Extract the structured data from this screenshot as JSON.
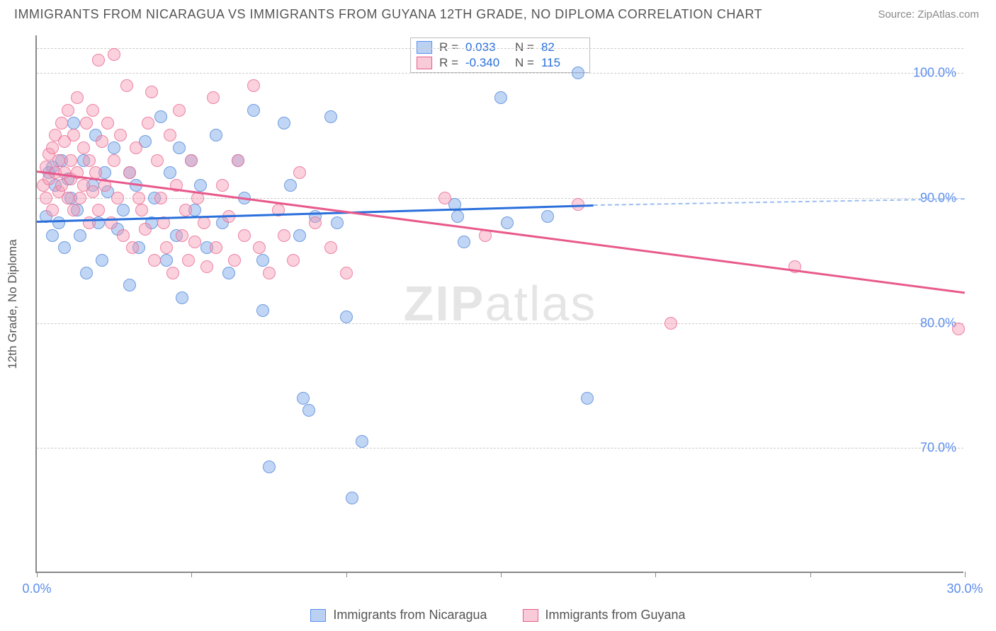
{
  "title": "IMMIGRANTS FROM NICARAGUA VS IMMIGRANTS FROM GUYANA 12TH GRADE, NO DIPLOMA CORRELATION CHART",
  "source": "Source: ZipAtlas.com",
  "ylabel": "12th Grade, No Diploma",
  "watermark_a": "ZIP",
  "watermark_b": "atlas",
  "chart": {
    "type": "scatter-with-trend",
    "background_color": "#ffffff",
    "grid_color": "#cccccc",
    "axis_color": "#888888",
    "xlim": [
      0,
      30
    ],
    "ylim": [
      60,
      103
    ],
    "x_ticks": [
      0,
      5,
      10,
      15,
      20,
      25,
      30
    ],
    "x_tick_labels": {
      "0": "0.0%",
      "30": "30.0%"
    },
    "y_ticks": [
      70,
      80,
      90,
      100
    ],
    "y_tick_labels": [
      "70.0%",
      "80.0%",
      "90.0%",
      "100.0%"
    ],
    "label_fontsize": 18,
    "label_color": "#5b8def",
    "marker_size": 18,
    "marker_opacity": 0.45,
    "series": [
      {
        "name": "Immigrants from Nicaragua",
        "color": "#75a3e6",
        "border_color": "#5a8cdc",
        "R": "0.033",
        "N": "82",
        "trend": {
          "x0": 0,
          "y0": 88.2,
          "x1": 18,
          "y1": 89.5,
          "color": "#2a6fdb",
          "width": 3,
          "extrap_x1": 30,
          "extrap_y1": 90.0
        },
        "pts": [
          [
            0.3,
            88.5
          ],
          [
            0.4,
            92
          ],
          [
            0.5,
            87
          ],
          [
            0.5,
            92.5
          ],
          [
            0.6,
            91
          ],
          [
            0.7,
            88
          ],
          [
            0.8,
            93
          ],
          [
            0.9,
            86
          ],
          [
            1.0,
            91.5
          ],
          [
            1.1,
            90
          ],
          [
            1.2,
            96
          ],
          [
            1.3,
            89
          ],
          [
            1.4,
            87
          ],
          [
            1.5,
            93
          ],
          [
            1.6,
            84
          ],
          [
            1.8,
            91
          ],
          [
            1.9,
            95
          ],
          [
            2.0,
            88
          ],
          [
            2.1,
            85
          ],
          [
            2.2,
            92
          ],
          [
            2.3,
            90.5
          ],
          [
            2.5,
            94
          ],
          [
            2.6,
            87.5
          ],
          [
            2.8,
            89
          ],
          [
            3.0,
            92
          ],
          [
            3.0,
            83
          ],
          [
            3.2,
            91
          ],
          [
            3.3,
            86
          ],
          [
            3.5,
            94.5
          ],
          [
            3.7,
            88
          ],
          [
            3.8,
            90
          ],
          [
            4.0,
            96.5
          ],
          [
            4.2,
            85
          ],
          [
            4.3,
            92
          ],
          [
            4.5,
            87
          ],
          [
            4.6,
            94
          ],
          [
            4.7,
            82
          ],
          [
            5.0,
            93
          ],
          [
            5.1,
            89
          ],
          [
            5.3,
            91
          ],
          [
            5.5,
            86
          ],
          [
            5.8,
            95
          ],
          [
            6.0,
            88
          ],
          [
            6.2,
            84
          ],
          [
            6.5,
            93
          ],
          [
            6.7,
            90
          ],
          [
            7.0,
            97
          ],
          [
            7.3,
            85
          ],
          [
            7.3,
            81
          ],
          [
            7.5,
            68.5
          ],
          [
            8.0,
            96
          ],
          [
            8.2,
            91
          ],
          [
            8.5,
            87
          ],
          [
            8.6,
            74
          ],
          [
            8.8,
            73
          ],
          [
            9.0,
            88.5
          ],
          [
            9.5,
            96.5
          ],
          [
            9.7,
            88
          ],
          [
            10.0,
            80.5
          ],
          [
            10.2,
            66
          ],
          [
            10.5,
            70.5
          ],
          [
            13.5,
            89.5
          ],
          [
            13.6,
            88.5
          ],
          [
            13.8,
            86.5
          ],
          [
            15.0,
            98
          ],
          [
            15.2,
            88
          ],
          [
            16.5,
            88.5
          ],
          [
            17.5,
            100
          ],
          [
            17.8,
            74
          ]
        ]
      },
      {
        "name": "Immigrants from Guyana",
        "color": "#f498b1",
        "border_color": "#eb6e96",
        "R": "-0.340",
        "N": "115",
        "trend": {
          "x0": 0,
          "y0": 92.2,
          "x1": 30,
          "y1": 82.5,
          "color": "#e85a8c",
          "width": 3
        },
        "pts": [
          [
            0.2,
            91
          ],
          [
            0.3,
            92.5
          ],
          [
            0.3,
            90
          ],
          [
            0.4,
            93.5
          ],
          [
            0.4,
            91.5
          ],
          [
            0.5,
            94
          ],
          [
            0.5,
            89
          ],
          [
            0.6,
            92
          ],
          [
            0.6,
            95
          ],
          [
            0.7,
            90.5
          ],
          [
            0.7,
            93
          ],
          [
            0.8,
            91
          ],
          [
            0.8,
            96
          ],
          [
            0.9,
            92
          ],
          [
            0.9,
            94.5
          ],
          [
            1.0,
            90
          ],
          [
            1.0,
            97
          ],
          [
            1.1,
            91.5
          ],
          [
            1.1,
            93
          ],
          [
            1.2,
            89
          ],
          [
            1.2,
            95
          ],
          [
            1.3,
            92
          ],
          [
            1.3,
            98
          ],
          [
            1.4,
            90
          ],
          [
            1.5,
            94
          ],
          [
            1.5,
            91
          ],
          [
            1.6,
            96
          ],
          [
            1.7,
            88
          ],
          [
            1.7,
            93
          ],
          [
            1.8,
            90.5
          ],
          [
            1.8,
            97
          ],
          [
            1.9,
            92
          ],
          [
            2.0,
            101
          ],
          [
            2.0,
            89
          ],
          [
            2.1,
            94.5
          ],
          [
            2.2,
            91
          ],
          [
            2.3,
            96
          ],
          [
            2.4,
            88
          ],
          [
            2.5,
            101.5
          ],
          [
            2.5,
            93
          ],
          [
            2.6,
            90
          ],
          [
            2.7,
            95
          ],
          [
            2.8,
            87
          ],
          [
            2.9,
            99
          ],
          [
            3.0,
            92
          ],
          [
            3.1,
            86
          ],
          [
            3.2,
            94
          ],
          [
            3.3,
            90
          ],
          [
            3.4,
            89
          ],
          [
            3.5,
            87.5
          ],
          [
            3.6,
            96
          ],
          [
            3.7,
            98.5
          ],
          [
            3.8,
            85
          ],
          [
            3.9,
            93
          ],
          [
            4.0,
            90
          ],
          [
            4.1,
            88
          ],
          [
            4.2,
            86
          ],
          [
            4.3,
            95
          ],
          [
            4.4,
            84
          ],
          [
            4.5,
            91
          ],
          [
            4.6,
            97
          ],
          [
            4.7,
            87
          ],
          [
            4.8,
            89
          ],
          [
            4.9,
            85
          ],
          [
            5.0,
            93
          ],
          [
            5.1,
            86.5
          ],
          [
            5.2,
            90
          ],
          [
            5.4,
            88
          ],
          [
            5.5,
            84.5
          ],
          [
            5.7,
            98
          ],
          [
            5.8,
            86
          ],
          [
            6.0,
            91
          ],
          [
            6.2,
            88.5
          ],
          [
            6.4,
            85
          ],
          [
            6.5,
            93
          ],
          [
            6.7,
            87
          ],
          [
            7.0,
            99
          ],
          [
            7.2,
            86
          ],
          [
            7.5,
            84
          ],
          [
            7.8,
            89
          ],
          [
            8.0,
            87
          ],
          [
            8.3,
            85
          ],
          [
            8.5,
            92
          ],
          [
            9.0,
            88
          ],
          [
            9.5,
            86
          ],
          [
            10.0,
            84
          ],
          [
            13.2,
            90
          ],
          [
            14.5,
            87
          ],
          [
            17.5,
            89.5
          ],
          [
            20.5,
            80
          ],
          [
            24.5,
            84.5
          ],
          [
            29.8,
            79.5
          ]
        ]
      }
    ]
  },
  "legend_bottom": [
    {
      "label": "Immigrants from Nicaragua",
      "swatch": "blue"
    },
    {
      "label": "Immigrants from Guyana",
      "swatch": "pink"
    }
  ]
}
